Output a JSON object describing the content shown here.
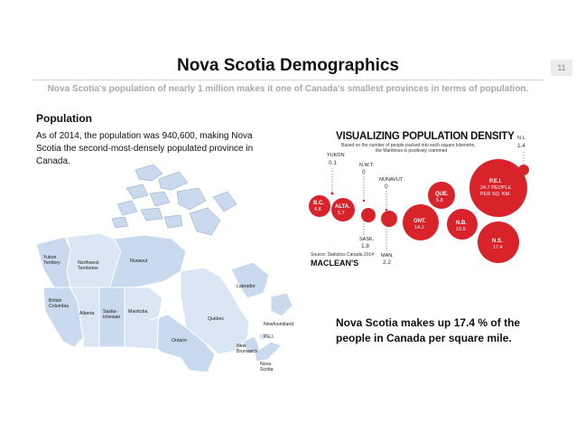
{
  "slide": {
    "title": "Nova Scotia Demographics",
    "page_number": "11",
    "subtitle": "Nova Scotia's population of nearly 1 million makes it one of Canada's smallest provinces in terms of population."
  },
  "population": {
    "heading": "Population",
    "body": "As of 2014, the population was 940,600, making Nova Scotia the second-most-densely populated province in Canada."
  },
  "map": {
    "labels": {
      "yukon": "Yukon",
      "yukon2": "Territory",
      "nwt": "Northwest",
      "nwt2": "Territories",
      "nunavut": "Nunavut",
      "bc": "British",
      "bc2": "Columbia",
      "alberta": "Alberta",
      "sask": "Saska-",
      "sask2": "tchewan",
      "manitoba": "Manitoba",
      "ontario": "Ontario",
      "quebec": "Québec",
      "labrador": "Labrador",
      "nfld": "Newfoundland",
      "pei": "P.E.I.",
      "nb": "New",
      "nb2": "Brunswick",
      "ns": "Nova",
      "ns2": "Scotia"
    },
    "colors": {
      "land": "#c9d9ee",
      "land_alt": "#dbe6f4",
      "border": "#ffffff",
      "outline": "#8a9fbf"
    }
  },
  "infographic": {
    "title": "VISUALIZING POPULATION DENSITY",
    "sub1": "Based on the number of people packed into each square kilometre,",
    "sub2": "the Maritimes is positively crammed",
    "source": "Source: Statistics Canada 2014",
    "brand": "MACLEAN'S",
    "colors": {
      "bubble": "#d8232a",
      "line": "#555555"
    },
    "items": [
      {
        "label": "YUKON",
        "value": "0.1"
      },
      {
        "label": "N.W.T.",
        "value": "0"
      },
      {
        "label": "NUNAVUT",
        "value": "0"
      },
      {
        "label": "N.L.",
        "value": "1.4"
      },
      {
        "label": "B.C.",
        "value": "4.8"
      },
      {
        "label": "ALTA.",
        "value": "5.7"
      },
      {
        "label": "SASK.",
        "value": "1.8"
      },
      {
        "label": "MAN.",
        "value": "2.2"
      },
      {
        "label": "ONT.",
        "value": "14.1"
      },
      {
        "label": "QUE.",
        "value": "5.8"
      },
      {
        "label": "N.B.",
        "value": "10.5"
      },
      {
        "label": "N.S.",
        "value": "17.4"
      },
      {
        "label": "P.E.I.",
        "value": "24.7 PEOPLE",
        "value2": "PER SQ. KM."
      }
    ]
  },
  "note": {
    "text": "Nova Scotia makes up 17.4 % of the people in Canada per square mile."
  }
}
